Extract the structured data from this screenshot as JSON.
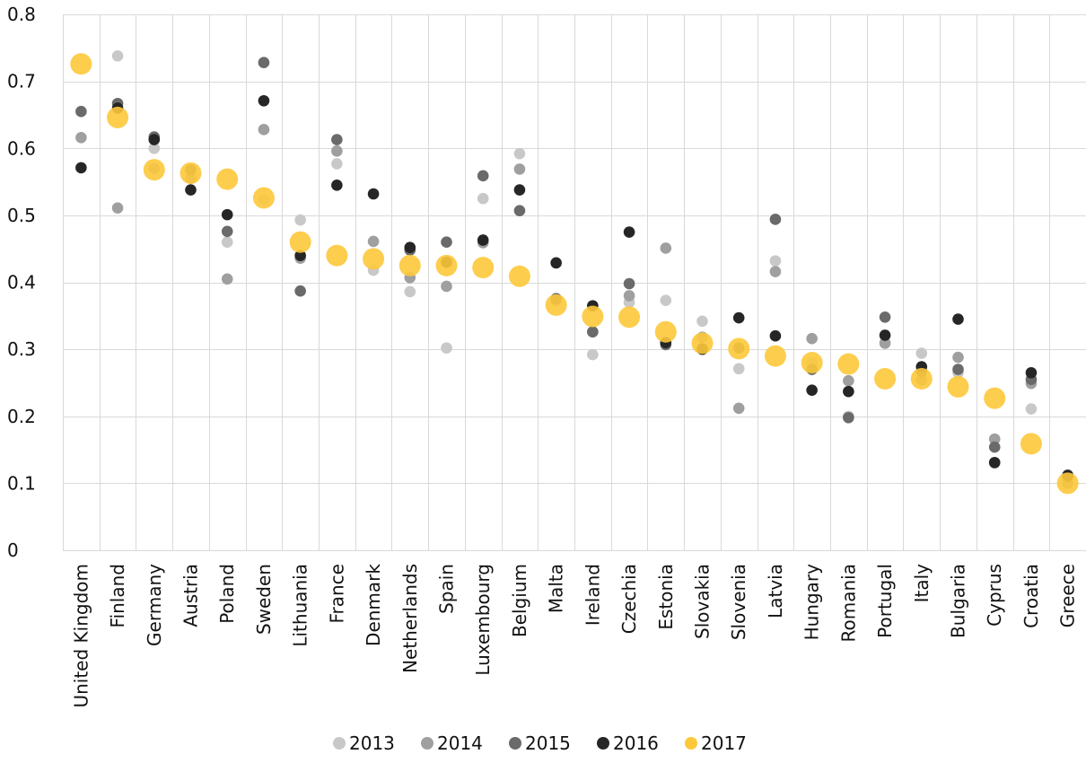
{
  "chart_data": {
    "type": "scatter",
    "title": "",
    "xlabel": "",
    "ylabel": "",
    "ylim": [
      0,
      0.8
    ],
    "yticks": [
      0,
      0.1,
      0.2,
      0.3,
      0.4,
      0.5,
      0.6,
      0.7,
      0.8
    ],
    "ytick_labels": [
      "0",
      "0.1",
      "0.2",
      "0.3",
      "0.4",
      "0.5",
      "0.6",
      "0.7",
      "0.8"
    ],
    "grid": "vertical and horizontal",
    "legend_position": "bottom-center",
    "categories": [
      "United Kingdom",
      "Finland",
      "Germany",
      "Austria",
      "Poland",
      "Sweden",
      "Lithuania",
      "France",
      "Denmark",
      "Netherlands",
      "Spain",
      "Luxembourg",
      "Belgium",
      "Malta",
      "Ireland",
      "Czechia",
      "Estonia",
      "Slovakia",
      "Slovenia",
      "Latvia",
      "Hungary",
      "Romania",
      "Portugal",
      "Italy",
      "Bulgaria",
      "Cyprus",
      "Croatia",
      "Greece"
    ],
    "series": [
      {
        "name": "2013",
        "color": "#c8c8c8",
        "values": [
          null,
          0.738,
          0.6,
          0.555,
          0.46,
          0.523,
          0.493,
          0.577,
          0.418,
          0.386,
          0.302,
          0.525,
          0.592,
          0.372,
          0.292,
          0.37,
          0.373,
          0.342,
          0.271,
          0.432,
          0.28,
          0.2,
          0.31,
          0.294,
          0.265,
          0.13,
          0.211,
          null
        ]
      },
      {
        "name": "2014",
        "color": "#9f9f9f",
        "values": [
          0.616,
          0.511,
          0.57,
          0.556,
          0.405,
          0.628,
          0.436,
          0.596,
          0.461,
          0.407,
          0.394,
          0.459,
          0.569,
          0.376,
          0.326,
          0.38,
          0.451,
          0.318,
          0.212,
          0.416,
          0.316,
          0.253,
          0.309,
          0.254,
          0.288,
          0.166,
          0.249,
          0.1
        ]
      },
      {
        "name": "2015",
        "color": "#6a6a6a",
        "values": [
          0.655,
          0.667,
          0.617,
          0.568,
          0.476,
          0.728,
          0.387,
          0.613,
          null,
          0.448,
          0.46,
          0.559,
          0.507,
          0.375,
          0.326,
          0.398,
          0.307,
          0.301,
          0.302,
          0.494,
          0.27,
          0.198,
          0.348,
          0.267,
          0.27,
          0.154,
          0.255,
          0.11
        ]
      },
      {
        "name": "2016",
        "color": "#262626",
        "values": [
          0.571,
          0.66,
          0.613,
          0.538,
          0.501,
          0.671,
          0.44,
          0.545,
          0.532,
          0.452,
          0.43,
          0.463,
          0.538,
          0.429,
          0.365,
          0.475,
          0.31,
          0.3,
          0.347,
          0.32,
          0.239,
          0.237,
          0.321,
          0.274,
          0.345,
          0.131,
          0.265,
          0.112
        ]
      },
      {
        "name": "2017",
        "color": "#fdc83a",
        "values": [
          0.726,
          0.646,
          0.568,
          0.563,
          0.554,
          0.526,
          0.46,
          0.44,
          0.435,
          0.425,
          0.425,
          0.422,
          0.409,
          0.366,
          0.349,
          0.348,
          0.326,
          0.309,
          0.301,
          0.29,
          0.28,
          0.278,
          0.256,
          0.256,
          0.244,
          0.227,
          0.159,
          0.1
        ]
      }
    ]
  }
}
